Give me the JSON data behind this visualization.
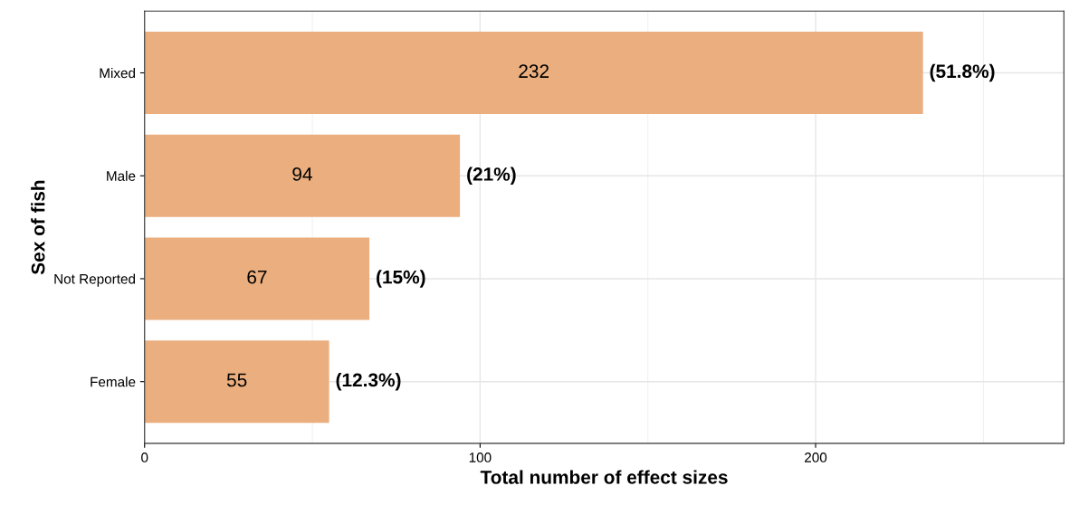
{
  "chart_data": {
    "type": "bar",
    "orientation": "horizontal",
    "xlabel": "Total number of effect sizes",
    "ylabel": "Sex of fish",
    "categories": [
      "Mixed",
      "Male",
      "Not Reported",
      "Female"
    ],
    "values": [
      232,
      94,
      67,
      55
    ],
    "color": "#ebae7e",
    "xlim": [
      0,
      274
    ],
    "xticks": [
      0,
      100,
      200
    ],
    "grid": true,
    "data_labels": true,
    "annotations": [
      {
        "text": "(51.8%)",
        "x": 232,
        "y": "Mixed"
      },
      {
        "text": "(21%)",
        "x": 94,
        "y": "Male"
      },
      {
        "text": "(15%)",
        "x": 67,
        "y": "Not Reported"
      },
      {
        "text": "(12.3%)",
        "x": 55,
        "y": "Female"
      }
    ]
  }
}
